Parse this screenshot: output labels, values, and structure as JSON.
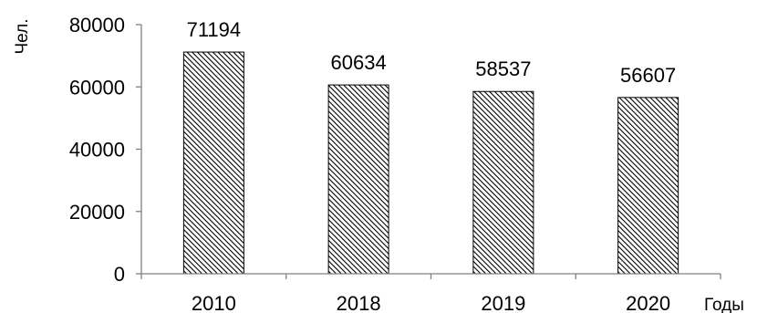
{
  "chart_data": {
    "type": "bar",
    "categories": [
      "2010",
      "2018",
      "2019",
      "2020"
    ],
    "values": [
      71194,
      60634,
      58537,
      56607
    ],
    "data_labels": [
      "71194",
      "60634",
      "58537",
      "56607"
    ],
    "title": "",
    "xlabel": "Годы",
    "ylabel": "Чел.",
    "ylim": [
      0,
      80000
    ],
    "yticks": [
      0,
      20000,
      40000,
      60000,
      80000
    ],
    "ytick_labels": [
      "0",
      "20000",
      "40000",
      "60000",
      "80000"
    ],
    "grid": false,
    "legend": "none",
    "bar_fill": "diagonal-hatch",
    "colors": {
      "bar_stroke": "#000000",
      "hatch": "#000000",
      "axis": "#808080"
    }
  }
}
